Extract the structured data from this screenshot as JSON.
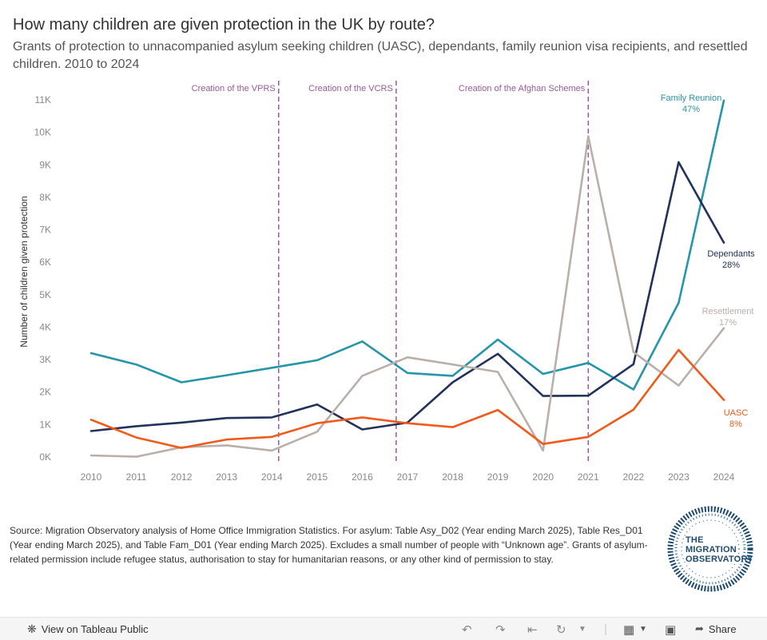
{
  "chart_data": {
    "type": "line",
    "title": "How many children are given protection in the UK by route?",
    "subtitle": "Grants of protection to unnacompanied asylum seeking children (UASC), dependants, family reunion visa recipients, and resettled children. 2010 to 2024",
    "ylabel": "Number of children given protection",
    "xlabel": "",
    "x": [
      2010,
      2011,
      2012,
      2013,
      2014,
      2015,
      2016,
      2017,
      2018,
      2019,
      2020,
      2021,
      2022,
      2023,
      2024
    ],
    "ylim": [
      0,
      11000
    ],
    "y_ticks": [
      0,
      1000,
      2000,
      3000,
      4000,
      5000,
      6000,
      7000,
      8000,
      9000,
      10000,
      11000
    ],
    "y_tick_labels": [
      "0K",
      "1K",
      "2K",
      "3K",
      "4K",
      "5K",
      "6K",
      "7K",
      "8K",
      "9K",
      "10K",
      "11K"
    ],
    "series": [
      {
        "name": "Family Reunion",
        "share": "47%",
        "color": "#2596a8",
        "values": [
          3200,
          2850,
          2300,
          2520,
          2750,
          2980,
          3560,
          2590,
          2500,
          3620,
          2560,
          2900,
          2080,
          4750,
          10980
        ]
      },
      {
        "name": "Dependants",
        "share": "28%",
        "color": "#22325a",
        "values": [
          800,
          950,
          1060,
          1200,
          1220,
          1620,
          850,
          1060,
          2300,
          3180,
          1880,
          1890,
          2860,
          9080,
          6600
        ]
      },
      {
        "name": "Resettlement",
        "share": "17%",
        "color": "#b9b0ab",
        "values": [
          50,
          10,
          300,
          360,
          200,
          780,
          2500,
          3070,
          2850,
          2620,
          200,
          9880,
          3230,
          2200,
          3970
        ]
      },
      {
        "name": "UASC",
        "share": "8%",
        "color": "#f05a1a",
        "values": [
          1150,
          600,
          280,
          540,
          620,
          1040,
          1220,
          1040,
          920,
          1450,
          400,
          620,
          1460,
          3300,
          1760
        ]
      }
    ],
    "annotations": [
      {
        "label": "Creation of the VPRS",
        "x": 2014.15
      },
      {
        "label": "Creation of the VCRS",
        "x": 2016.75
      },
      {
        "label": "Creation of the Afghan Schemes",
        "x": 2021.0
      }
    ]
  },
  "source_note": "Source: Migration Observatory analysis of Home Office Immigration Statistics. For asylum: Table Asy_D02 (Year ending March 2025), Table Res_D01 (Year ending March 2025), and Table Fam_D01 (Year ending March 2025). Excludes a small number of people with “Unknown age”. Grants of asylum-related permission include refugee status, authorisation to stay for humanitarian reasons, or any other kind of permission to stay.",
  "logo": {
    "line1": "THE",
    "line2": "MIGRATION",
    "line3": "OBSERVATORY"
  },
  "footer": {
    "view_label": "View on Tableau Public",
    "share_label": "Share"
  }
}
